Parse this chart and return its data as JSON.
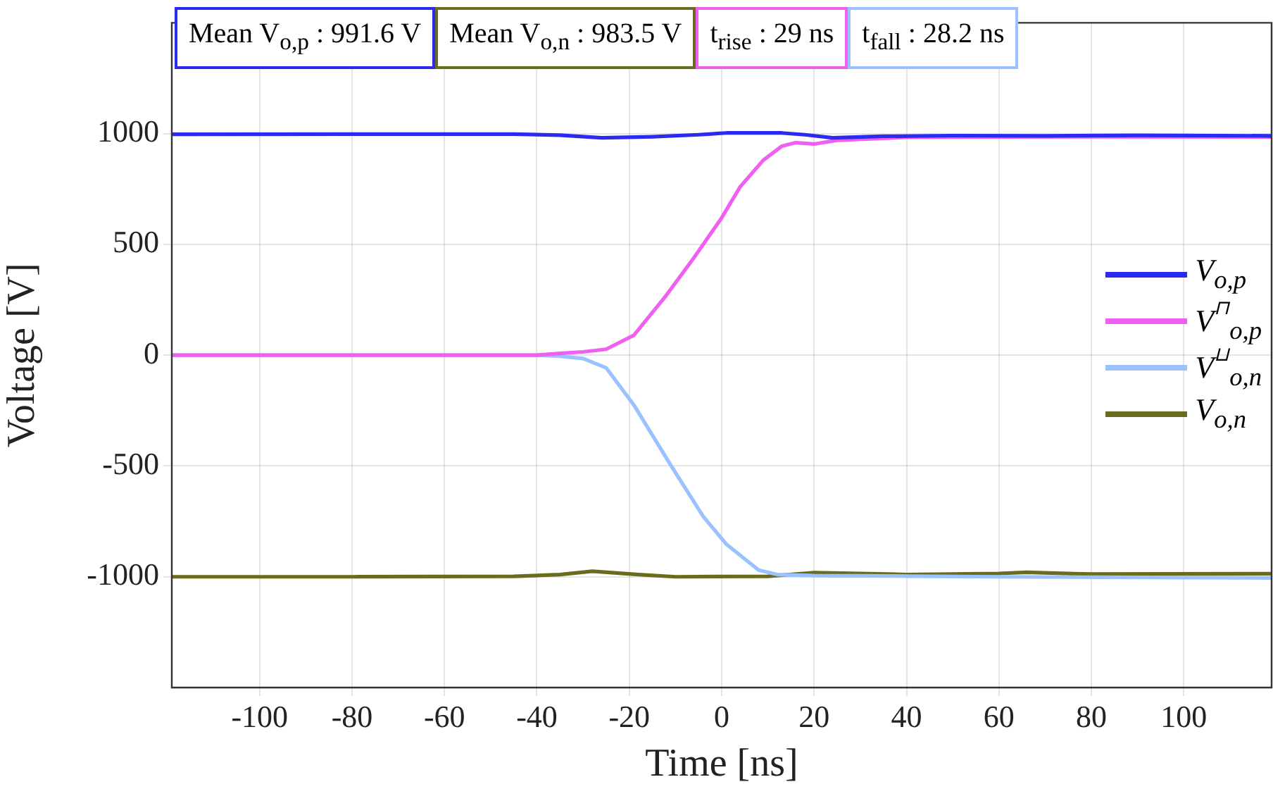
{
  "chart_data": {
    "type": "line",
    "xlabel": "Time [ns]",
    "ylabel": "Voltage [V]",
    "xlim": [
      -119,
      119
    ],
    "ylim": [
      -1500,
      1500
    ],
    "xticks": [
      -100,
      -80,
      -60,
      -40,
      -20,
      0,
      20,
      40,
      60,
      80,
      100
    ],
    "yticks": [
      -1000,
      -500,
      0,
      500,
      1000
    ],
    "grid": true,
    "legend": "right",
    "line_style": "solid",
    "annotations": [
      "Mean V$_{o,p}$ : 991.6 V",
      "Mean V$_{o,n}$ : 983.5 V",
      "t$_{rise}$ : 29 ns",
      "t$_{fall}$ : 28.2 ns"
    ],
    "series": [
      {
        "name": "V$_{o,p}$",
        "color": "#2a2af0",
        "x": [
          -119,
          -80,
          -45,
          -35,
          -26,
          -15,
          -5,
          1,
          13,
          18,
          24,
          35,
          50,
          70,
          90,
          119
        ],
        "values": [
          997,
          998,
          998,
          993,
          981,
          986,
          995,
          1003,
          1003,
          995,
          981,
          988,
          991,
          990,
          992,
          990
        ]
      },
      {
        "name": "V$^{⊓}$$_{o,p}$",
        "color": "#f060f0",
        "x": [
          -119,
          -80,
          -40,
          -35,
          -30,
          -25,
          -19,
          -12,
          -6,
          0,
          4,
          9,
          13,
          16,
          20,
          25,
          40,
          60,
          80,
          119
        ],
        "values": [
          0,
          0,
          0,
          8,
          15,
          27,
          90,
          270,
          440,
          620,
          760,
          880,
          943,
          959,
          953,
          970,
          983,
          985,
          986,
          985
        ]
      },
      {
        "name": "V$^{⊔}$$_{o,n}$",
        "color": "#99c2ff",
        "x": [
          -119,
          -80,
          -40,
          -35,
          -30,
          -25,
          -19,
          -11,
          -4,
          1,
          8,
          12,
          20,
          40,
          60,
          80,
          119
        ],
        "values": [
          0,
          0,
          0,
          -5,
          -15,
          -57,
          -225,
          -497,
          -728,
          -853,
          -970,
          -990,
          -995,
          -997,
          -1000,
          -1002,
          -1005
        ]
      },
      {
        "name": "V$_{o,n}$",
        "color": "#6b6b1f",
        "x": [
          -119,
          -80,
          -45,
          -35,
          -28,
          -18,
          -10,
          10,
          20,
          30,
          40,
          60,
          66,
          80,
          119
        ],
        "values": [
          -1000,
          -1000,
          -998,
          -990,
          -975,
          -990,
          -1000,
          -998,
          -981,
          -985,
          -990,
          -985,
          -980,
          -988,
          -986
        ]
      }
    ]
  }
}
